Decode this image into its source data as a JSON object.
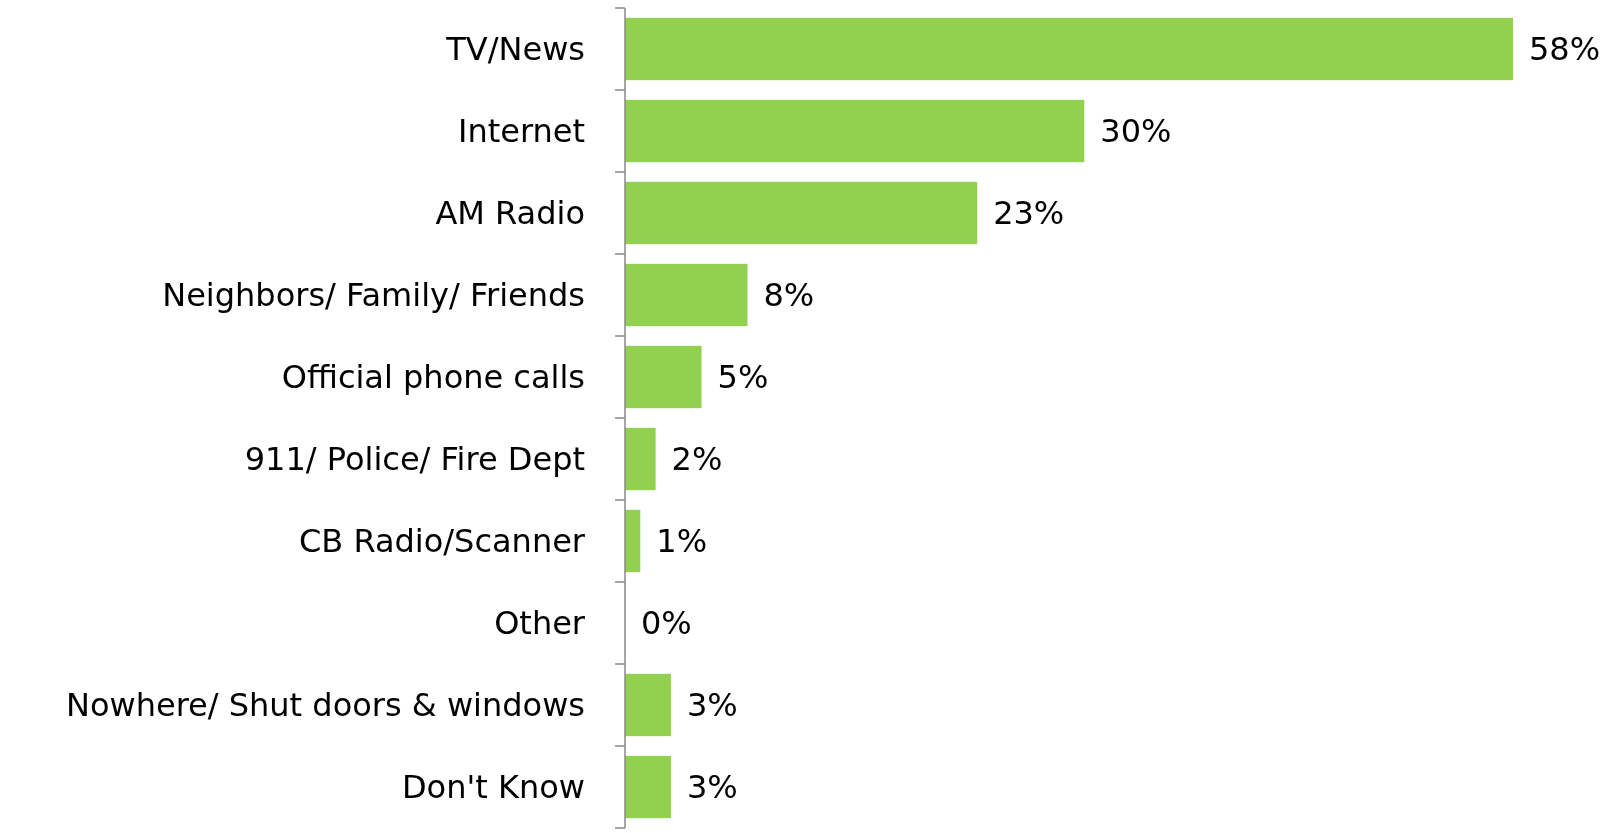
{
  "chart_data": {
    "type": "bar",
    "orientation": "horizontal",
    "categories": [
      "TV/News",
      "Internet",
      "AM Radio",
      "Neighbors/ Family/ Friends",
      "Official phone calls",
      "911/ Police/ Fire Dept",
      "CB Radio/Scanner",
      "Other",
      "Nowhere/ Shut doors & windows",
      "Don't Know"
    ],
    "values": [
      58,
      30,
      23,
      8,
      5,
      2,
      1,
      0,
      3,
      3
    ],
    "value_labels": [
      "58%",
      "30%",
      "23%",
      "8%",
      "5%",
      "2%",
      "1%",
      "0%",
      "3%",
      "3%"
    ],
    "color": "#92d050"
  }
}
